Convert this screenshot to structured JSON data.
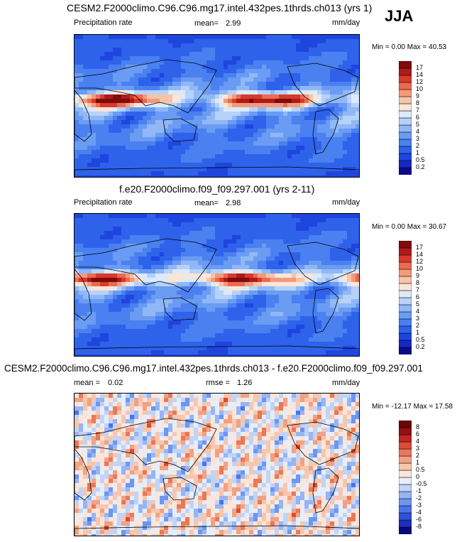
{
  "season": "JJA",
  "panels": [
    {
      "title": "CESM2.F2000climo.C96.C96.mg17.intel.432pes.1thrds.ch013 (yrs 1)",
      "left_label": "Precipitation rate",
      "mean_label": "mean=",
      "mean_value": "2.99",
      "units": "mm/day",
      "minmax": "Min =   0.00 Max =  40.53",
      "kind": "abs"
    },
    {
      "title": "f.e20.F2000climo.f09_f09.297.001 (yrs 2-11)",
      "left_label": "Precipitation rate",
      "mean_label": "mean=",
      "mean_value": "2.98",
      "units": "mm/day",
      "minmax": "Min =   0.00 Max =  30.67",
      "kind": "abs"
    },
    {
      "title": "CESM2.F2000climo.C96.C96.mg17.intel.432pes.1thrds.ch013 - f.e20.F2000climo.f09_f09.297.001",
      "left_label": "mean =",
      "left_value": "0.02",
      "rmse_label": "rmse =",
      "rmse_value": "1.26",
      "units": "mm/day",
      "minmax": "Min = -12.17 Max =  17.58",
      "kind": "diff"
    }
  ],
  "chart_data": [
    {
      "type": "heatmap",
      "title": "CESM2.F2000climo.C96.C96.mg17.intel.432pes.1thrds.ch013 (yrs 1)",
      "variable": "Precipitation rate",
      "units": "mm/day",
      "mean": 2.99,
      "min": 0.0,
      "max": 40.53,
      "colorbar_levels": [
        "0.2",
        "0.5",
        "1",
        "2",
        "3",
        "4",
        "5",
        "6",
        "7",
        "8",
        "9",
        "10",
        "12",
        "14",
        "17"
      ],
      "colorbar_colors": [
        "#0a0a8c",
        "#1628c4",
        "#1f45df",
        "#2f62ea",
        "#4a80f0",
        "#6b9cf3",
        "#90b8f6",
        "#b6d2f9",
        "#dceaf9",
        "#fbe5d6",
        "#f7c4a8",
        "#f29a7a",
        "#ea6b4e",
        "#d83a2b",
        "#b0191c",
        "#7f0b0b"
      ]
    },
    {
      "type": "heatmap",
      "title": "f.e20.F2000climo.f09_f09.297.001 (yrs 2-11)",
      "variable": "Precipitation rate",
      "units": "mm/day",
      "mean": 2.98,
      "min": 0.0,
      "max": 30.67,
      "colorbar_levels": [
        "0.2",
        "0.5",
        "1",
        "2",
        "3",
        "4",
        "5",
        "6",
        "7",
        "8",
        "9",
        "10",
        "12",
        "14",
        "17"
      ],
      "colorbar_colors": [
        "#0a0a8c",
        "#1628c4",
        "#1f45df",
        "#2f62ea",
        "#4a80f0",
        "#6b9cf3",
        "#90b8f6",
        "#b6d2f9",
        "#dceaf9",
        "#fbe5d6",
        "#f7c4a8",
        "#f29a7a",
        "#ea6b4e",
        "#d83a2b",
        "#b0191c",
        "#7f0b0b"
      ]
    },
    {
      "type": "heatmap",
      "title": "CESM2.F2000climo.C96.C96.mg17.intel.432pes.1thrds.ch013 - f.e20.F2000climo.f09_f09.297.001",
      "units": "mm/day",
      "mean": 0.02,
      "rmse": 1.26,
      "min": -12.17,
      "max": 17.58,
      "colorbar_levels": [
        "-8",
        "-6",
        "-4",
        "-3",
        "-2",
        "-1",
        "-0.5",
        "0",
        "0.5",
        "1",
        "2",
        "3",
        "4",
        "6",
        "8"
      ],
      "colorbar_colors": [
        "#08087a",
        "#1a2fbf",
        "#2d52d9",
        "#4c74e6",
        "#6f95ee",
        "#96b5f4",
        "#c0d4f8",
        "#e6eefb",
        "#fce5d8",
        "#f8c6ae",
        "#f1a184",
        "#e87859",
        "#d94c36",
        "#c02621",
        "#951111",
        "#6a0606"
      ]
    }
  ]
}
